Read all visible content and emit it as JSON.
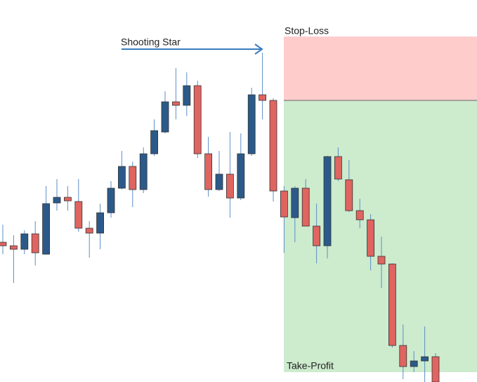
{
  "chart_data": {
    "type": "candlestick",
    "annotation": "Shooting Star",
    "stop_loss": {
      "label": "Stop-Loss",
      "range": [
        401,
        492
      ],
      "color": "#ffcccc"
    },
    "take_profit": {
      "label": "Take-Profit",
      "range": [
        14,
        401
      ],
      "color": "#cdebcd"
    },
    "up_color": "#2b5a8a",
    "down_color": "#e06460",
    "ylim": [
      0,
      544
    ],
    "open": [
      199,
      194,
      189,
      211,
      182,
      255,
      263,
      257,
      219,
      212,
      241,
      276,
      307,
      274,
      325,
      356,
      399,
      394,
      422,
      325,
      274,
      296,
      262,
      325,
      409,
      401,
      272,
      234,
      276,
      222,
      194,
      321,
      288,
      244,
      231,
      179,
      168,
      52,
      22,
      30,
      36
    ],
    "high": [
      224,
      209,
      216,
      229,
      279,
      289,
      279,
      289,
      229,
      254,
      286,
      329,
      314,
      334,
      374,
      414,
      447,
      441,
      429,
      349,
      329,
      356,
      354,
      419,
      469,
      404,
      279,
      279,
      289,
      254,
      322,
      334,
      316,
      261,
      239,
      207,
      169,
      82,
      44,
      79,
      41
    ],
    "low": [
      182,
      141,
      182,
      166,
      182,
      244,
      244,
      214,
      177,
      189,
      234,
      274,
      249,
      269,
      322,
      354,
      374,
      379,
      319,
      264,
      272,
      234,
      259,
      322,
      374,
      257,
      184,
      199,
      222,
      169,
      176,
      286,
      242,
      219,
      159,
      134,
      49,
      4,
      14,
      0,
      0
    ],
    "close": [
      194,
      189,
      211,
      184,
      254,
      263,
      258,
      219,
      212,
      241,
      276,
      307,
      274,
      325,
      358,
      399,
      394,
      422,
      325,
      274,
      296,
      262,
      325,
      409,
      401,
      272,
      235,
      276,
      222,
      194,
      321,
      289,
      244,
      231,
      179,
      168,
      52,
      22,
      30,
      36,
      0
    ]
  }
}
